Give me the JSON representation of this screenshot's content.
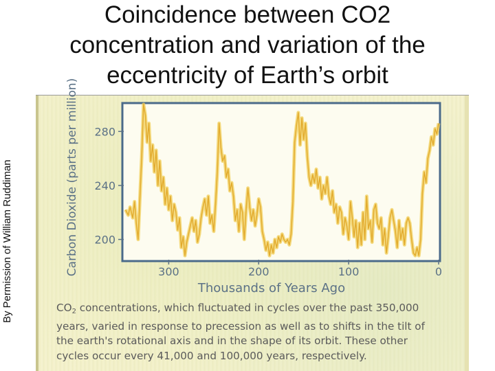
{
  "slide": {
    "title_line1": "Coincidence between CO2",
    "title_line2": "concentration and variation of the",
    "title_line3": "eccentricity of Earth’s orbit",
    "credit": "By Permission of William Ruddiman"
  },
  "caption": {
    "co": "CO",
    "sub": "2",
    "rest": " concentrations, which fluctuated in cycles over the past 350,000 years, varied in response to precession as well as to shifts in the tilt of the earth's rotational axis and in the shape of its orbit. These other cycles occur every 41,000 and 100,000 years, respectively."
  },
  "colors": {
    "line": "#f0cf5a",
    "line_core": "#e2aa2c",
    "frame": "#4a6a8a",
    "axis_text": "#5b7186"
  },
  "chart_data": {
    "type": "line",
    "title": "",
    "xlabel": "Thousands of Years Ago",
    "ylabel": "Carbon Dioxide (parts per million)",
    "xlim": [
      350,
      0
    ],
    "ylim": [
      185,
      300
    ],
    "xticks": [
      300,
      200,
      100,
      0
    ],
    "yticks": [
      280,
      240,
      200
    ],
    "grid": false,
    "series": [
      {
        "x": [
          348,
          345,
          343,
          340,
          338,
          336,
          334,
          332,
          330,
          328,
          326,
          324,
          322,
          320,
          318,
          316,
          314,
          312,
          310,
          308,
          306,
          304,
          302,
          300,
          298,
          296,
          294,
          292,
          290,
          288,
          286,
          284,
          282,
          280,
          278,
          276,
          274,
          272,
          270,
          268,
          266,
          264,
          262,
          260,
          258,
          256,
          254,
          252,
          250,
          248,
          246,
          244,
          242,
          240,
          238,
          236,
          234,
          232,
          230,
          228,
          226,
          224,
          222,
          220,
          218,
          216,
          214,
          212,
          210,
          208,
          206,
          204,
          202,
          200,
          198,
          196,
          194,
          192,
          190,
          188,
          186,
          184,
          182,
          180,
          178,
          176,
          174,
          172,
          170,
          168,
          166,
          164,
          162,
          160,
          158,
          156,
          154,
          152,
          150,
          148,
          146,
          144,
          142,
          140,
          138,
          136,
          134,
          132,
          130,
          128,
          126,
          124,
          122,
          120,
          118,
          116,
          114,
          112,
          110,
          108,
          106,
          104,
          102,
          100,
          98,
          96,
          94,
          92,
          90,
          88,
          86,
          84,
          82,
          80,
          78,
          76,
          74,
          72,
          70,
          68,
          66,
          64,
          62,
          60,
          58,
          56,
          54,
          52,
          50,
          48,
          46,
          44,
          42,
          40,
          38,
          36,
          34,
          32,
          30,
          28,
          26,
          24,
          22,
          20,
          18,
          16,
          14,
          12,
          10,
          8,
          6,
          4,
          2,
          0
        ],
        "values": [
          222,
          218,
          224,
          216,
          228,
          212,
          200,
          232,
          262,
          300,
          292,
          272,
          286,
          258,
          270,
          250,
          266,
          240,
          258,
          236,
          246,
          226,
          238,
          222,
          232,
          214,
          226,
          220,
          207,
          216,
          194,
          202,
          188,
          198,
          204,
          210,
          216,
          206,
          214,
          198,
          204,
          216,
          224,
          230,
          218,
          232,
          212,
          218,
          206,
          226,
          250,
          286,
          268,
          258,
          262,
          246,
          252,
          236,
          242,
          232,
          214,
          222,
          206,
          226,
          220,
          200,
          222,
          238,
          224,
          214,
          222,
          210,
          218,
          230,
          224,
          206,
          200,
          192,
          198,
          188,
          196,
          190,
          200,
          194,
          202,
          198,
          204,
          200,
          198,
          200,
          196,
          204,
          228,
          272,
          284,
          294,
          270,
          290,
          274,
          286,
          262,
          246,
          240,
          248,
          242,
          252,
          238,
          246,
          230,
          240,
          234,
          246,
          232,
          226,
          236,
          220,
          226,
          212,
          224,
          220,
          204,
          216,
          210,
          200,
          228,
          216,
          202,
          214,
          194,
          212,
          196,
          220,
          200,
          232,
          208,
          214,
          198,
          222,
          226,
          212,
          208,
          216,
          196,
          208,
          190,
          202,
          216,
          222,
          214,
          206,
          194,
          214,
          200,
          208,
          196,
          212,
          216,
          212,
          200,
          190,
          188,
          194,
          188,
          200,
          234,
          250,
          242,
          260,
          266,
          276,
          270,
          282,
          278,
          286
        ]
      }
    ]
  }
}
